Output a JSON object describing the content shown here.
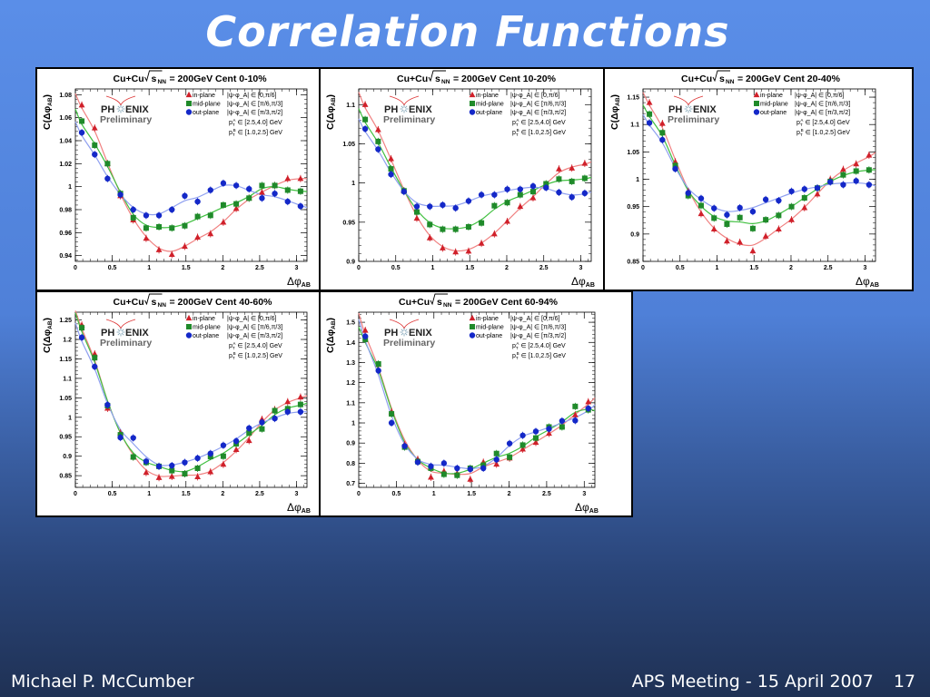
{
  "slide": {
    "title": "Correlation Functions",
    "author": "Michael P. McCumber",
    "event": "APS Meeting - 15 April 2007",
    "page_number": "17"
  },
  "colors": {
    "in_plane": "#d0202a",
    "mid_plane": "#1f8a2a",
    "out_plane": "#1428c8",
    "in_plane_fit": "#f08080",
    "mid_plane_fit": "#40c040",
    "out_plane_fit": "#8fa0f0"
  },
  "common": {
    "logo_line1_left": "PH",
    "logo_line1_right": "ENIX",
    "logo_line2": "Preliminary",
    "legend": [
      {
        "name": "in-plane",
        "range": "|ψ-φ_A| ∈ [0,π/6]",
        "marker": "triangle"
      },
      {
        "name": "mid-plane",
        "range": "|ψ-φ_A| ∈ [π/6,π/3]",
        "marker": "square"
      },
      {
        "name": "out-plane",
        "range": "|ψ-φ_A| ∈ [π/3,π/2]",
        "marker": "circle"
      }
    ],
    "pt_a": "∈ [2.5,4.0] GeV",
    "pt_b": "∈ [1.0,2.5] GeV",
    "xlabel": "Δφ",
    "xlabel_sub": "AB",
    "ylabel": "C(Δφ",
    "ylabel_sub": "AB",
    "title_prefix": "Cu+Cu",
    "title_sqrt": "s",
    "title_sqrt_sub": "NN",
    "x_ticks": [
      "0",
      "0.5",
      "1",
      "1.5",
      "2",
      "2.5",
      "3"
    ],
    "x_tick_values": [
      0,
      0.5,
      1,
      1.5,
      2,
      2.5,
      3
    ]
  },
  "chart_data": [
    {
      "type": "scatter",
      "title": "Cu+Cu √sNN = 200GeV Cent 0-10%",
      "title_suffix": "= 200GeV Cent 0-10%",
      "xlabel": "Δφ_AB",
      "ylabel": "C(Δφ_AB)",
      "xlim": [
        0,
        3.1416
      ],
      "ylim": [
        0.935,
        1.085
      ],
      "y_ticks": [
        0.94,
        0.96,
        0.98,
        1.0,
        1.02,
        1.04,
        1.06,
        1.08
      ],
      "y_tick_labels": [
        "0.94",
        "0.96",
        "0.98",
        "1",
        "1.02",
        "1.04",
        "1.06",
        "1.08"
      ],
      "x": [
        0.087,
        0.262,
        0.436,
        0.611,
        0.785,
        0.96,
        1.134,
        1.309,
        1.484,
        1.658,
        1.833,
        2.007,
        2.182,
        2.356,
        2.531,
        2.705,
        2.88,
        3.054
      ],
      "series": [
        {
          "name": "in-plane",
          "values": [
            1.071,
            1.051,
            1.02,
            0.992,
            0.971,
            0.955,
            0.945,
            0.941,
            0.948,
            0.956,
            0.959,
            0.969,
            0.981,
            0.99,
            0.995,
            1.001,
            1.007,
            1.007
          ]
        },
        {
          "name": "mid-plane",
          "values": [
            1.057,
            1.036,
            1.02,
            0.994,
            0.973,
            0.964,
            0.965,
            0.964,
            0.966,
            0.974,
            0.975,
            0.984,
            0.985,
            0.99,
            1.001,
            1.001,
            0.997,
            0.996
          ]
        },
        {
          "name": "out-plane",
          "values": [
            1.047,
            1.028,
            1.007,
            0.993,
            0.98,
            0.975,
            0.975,
            0.98,
            0.992,
            0.987,
            0.997,
            1.003,
            1.001,
            0.998,
            0.99,
            0.994,
            0.987,
            0.983
          ]
        }
      ],
      "legend_position": "top-right"
    },
    {
      "type": "scatter",
      "title": "Cu+Cu √sNN = 200GeV Cent 10-20%",
      "title_suffix": "= 200GeV Cent 10-20%",
      "xlabel": "Δφ_AB",
      "ylabel": "C(Δφ_AB)",
      "xlim": [
        0,
        3.1416
      ],
      "ylim": [
        0.9,
        1.12
      ],
      "y_ticks": [
        0.9,
        0.95,
        1.0,
        1.05,
        1.1
      ],
      "y_tick_labels": [
        "0.9",
        "0.95",
        "1",
        "1.05",
        "1.1"
      ],
      "x": [
        0.087,
        0.262,
        0.436,
        0.611,
        0.785,
        0.96,
        1.134,
        1.309,
        1.484,
        1.658,
        1.833,
        2.007,
        2.182,
        2.356,
        2.531,
        2.705,
        2.88,
        3.054
      ],
      "series": [
        {
          "name": "in-plane",
          "values": [
            1.1,
            1.068,
            1.031,
            0.99,
            0.955,
            0.93,
            0.917,
            0.912,
            0.913,
            0.923,
            0.935,
            0.951,
            0.97,
            0.981,
            0.998,
            1.018,
            1.019,
            1.025
          ]
        },
        {
          "name": "mid-plane",
          "values": [
            1.081,
            1.053,
            1.018,
            0.99,
            0.963,
            0.947,
            0.941,
            0.941,
            0.944,
            0.949,
            0.971,
            0.975,
            0.985,
            0.989,
            0.999,
            1.005,
            1.002,
            1.006
          ]
        },
        {
          "name": "out-plane",
          "values": [
            1.069,
            1.043,
            1.011,
            0.989,
            0.97,
            0.97,
            0.972,
            0.968,
            0.977,
            0.985,
            0.985,
            0.992,
            0.992,
            0.996,
            0.994,
            0.988,
            0.982,
            0.987
          ]
        }
      ],
      "legend_position": "top-right"
    },
    {
      "type": "scatter",
      "title": "Cu+Cu √sNN = 200GeV Cent 20-40%",
      "title_suffix": "= 200GeV Cent 20-40%",
      "xlabel": "Δφ_AB",
      "ylabel": "C(Δφ_AB)",
      "xlim": [
        0,
        3.1416
      ],
      "ylim": [
        0.85,
        1.165
      ],
      "y_ticks": [
        0.85,
        0.9,
        0.95,
        1.0,
        1.05,
        1.1,
        1.15
      ],
      "y_tick_labels": [
        "0.85",
        "0.9",
        "0.95",
        "1",
        "1.05",
        "1.1",
        "1.15"
      ],
      "x": [
        0.087,
        0.262,
        0.436,
        0.611,
        0.785,
        0.96,
        1.134,
        1.309,
        1.484,
        1.658,
        1.833,
        2.007,
        2.182,
        2.356,
        2.531,
        2.705,
        2.88,
        3.054
      ],
      "series": [
        {
          "name": "in-plane",
          "values": [
            1.14,
            1.102,
            1.032,
            0.978,
            0.937,
            0.909,
            0.887,
            0.885,
            0.869,
            0.896,
            0.909,
            0.926,
            0.948,
            0.973,
            1.0,
            1.018,
            1.028,
            1.044
          ]
        },
        {
          "name": "mid-plane",
          "values": [
            1.119,
            1.085,
            1.025,
            0.97,
            0.952,
            0.929,
            0.918,
            0.93,
            0.91,
            0.926,
            0.934,
            0.95,
            0.966,
            0.984,
            0.996,
            1.008,
            1.015,
            1.017
          ]
        },
        {
          "name": "out-plane",
          "values": [
            1.103,
            1.072,
            1.019,
            0.975,
            0.965,
            0.947,
            0.935,
            0.948,
            0.941,
            0.963,
            0.961,
            0.978,
            0.982,
            0.984,
            0.995,
            0.99,
            0.997,
            0.99
          ]
        }
      ],
      "legend_position": "top-right"
    },
    {
      "type": "scatter",
      "title": "Cu+Cu √sNN = 200GeV Cent 40-60%",
      "title_suffix": "= 200GeV Cent 40-60%",
      "xlabel": "Δφ_AB",
      "ylabel": "C(Δφ_AB)",
      "xlim": [
        0,
        3.1416
      ],
      "ylim": [
        0.82,
        1.27
      ],
      "y_ticks": [
        0.85,
        0.9,
        0.95,
        1.0,
        1.05,
        1.1,
        1.15,
        1.2,
        1.25
      ],
      "y_tick_labels": [
        "0.85",
        "0.9",
        "0.95",
        "1",
        "1.05",
        "1.1",
        "1.15",
        "1.2",
        "1.25"
      ],
      "x": [
        0.087,
        0.262,
        0.436,
        0.611,
        0.785,
        0.96,
        1.134,
        1.309,
        1.484,
        1.658,
        1.833,
        2.007,
        2.182,
        2.356,
        2.531,
        2.705,
        2.88,
        3.054
      ],
      "series": [
        {
          "name": "in-plane",
          "values": [
            1.237,
            1.163,
            1.023,
            0.96,
            0.898,
            0.858,
            0.845,
            0.848,
            0.855,
            0.847,
            0.86,
            0.879,
            0.917,
            0.94,
            0.995,
            1.02,
            1.04,
            1.052
          ]
        },
        {
          "name": "mid-plane",
          "values": [
            1.23,
            1.153,
            1.03,
            0.955,
            0.898,
            0.884,
            0.874,
            0.863,
            0.855,
            0.869,
            0.899,
            0.9,
            0.932,
            0.96,
            0.97,
            1.017,
            1.022,
            1.033
          ]
        },
        {
          "name": "out-plane",
          "values": [
            1.205,
            1.13,
            1.032,
            0.948,
            0.947,
            0.887,
            0.874,
            0.876,
            0.884,
            0.895,
            0.907,
            0.928,
            0.939,
            0.972,
            0.987,
            0.997,
            1.014,
            1.014
          ]
        }
      ],
      "legend_position": "top-right"
    },
    {
      "type": "scatter",
      "title": "Cu+Cu √sNN = 200GeV Cent 60-94%",
      "title_suffix": "= 200GeV Cent 60-94%",
      "xlabel": "Δφ_AB",
      "ylabel": "C(Δφ_AB)",
      "xlim": [
        0,
        3.1416
      ],
      "ylim": [
        0.68,
        1.55
      ],
      "y_ticks": [
        0.7,
        0.8,
        0.9,
        1.0,
        1.1,
        1.2,
        1.3,
        1.4,
        1.5
      ],
      "y_tick_labels": [
        "0.7",
        "0.8",
        "0.9",
        "1",
        "1.1",
        "1.2",
        "1.3",
        "1.4",
        "1.5"
      ],
      "x": [
        0.087,
        0.262,
        0.436,
        0.611,
        0.785,
        0.96,
        1.134,
        1.309,
        1.484,
        1.658,
        1.833,
        2.007,
        2.182,
        2.356,
        2.531,
        2.705,
        2.88,
        3.054
      ],
      "series": [
        {
          "name": "in-plane",
          "values": [
            1.46,
            1.29,
            1.055,
            0.893,
            0.82,
            0.73,
            0.76,
            0.75,
            0.72,
            0.805,
            0.795,
            0.825,
            0.87,
            0.903,
            0.948,
            0.985,
            1.04,
            1.105
          ]
        },
        {
          "name": "mid-plane",
          "values": [
            1.415,
            1.293,
            1.045,
            0.88,
            0.808,
            0.775,
            0.745,
            0.74,
            0.775,
            0.79,
            0.848,
            0.83,
            0.89,
            0.925,
            0.98,
            0.98,
            1.082,
            1.065
          ]
        },
        {
          "name": "out-plane",
          "values": [
            1.43,
            1.26,
            1.0,
            0.885,
            0.805,
            0.785,
            0.8,
            0.775,
            0.77,
            0.775,
            0.818,
            0.898,
            0.938,
            0.958,
            0.97,
            1.01,
            1.012,
            1.072
          ]
        }
      ],
      "legend_position": "top-right"
    }
  ]
}
